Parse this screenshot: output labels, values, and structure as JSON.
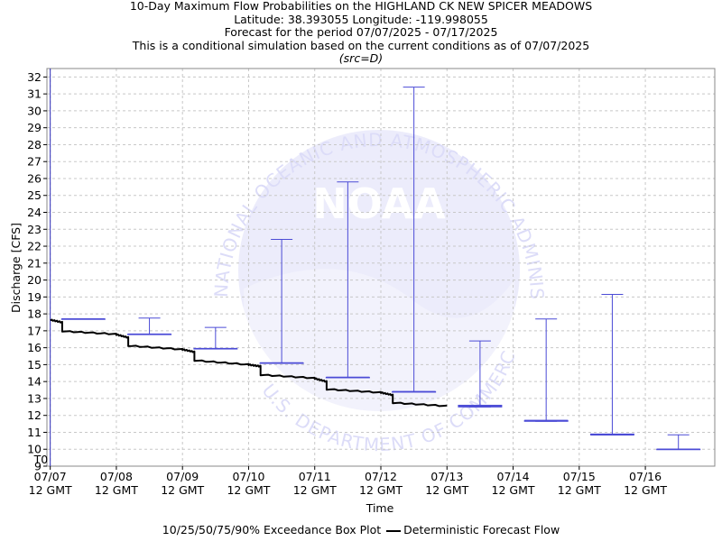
{
  "header": {
    "title": "10-Day Maximum Flow Probabilities on the HIGHLAND CK NEW SPICER MEADOWS",
    "location": "Latitude: 38.393055 Longitude: -119.998055",
    "period": "Forecast for the period 07/07/2025 - 07/17/2025",
    "note": "This is a conditional simulation based on the current conditions as of 07/07/2025",
    "source": "(src=D)"
  },
  "legend": {
    "boxplot_label": "10/25/50/75/90% Exceedance Box Plot",
    "deterministic_label": "Deterministic Forecast Flow"
  },
  "watermark": {
    "logo_text": "NOAA",
    "ring_text": "NATIONAL OCEANIC AND ATMOSPHERIC ADMINISTRATION",
    "ring_text_bottom": "U.S. DEPARTMENT OF COMMERCE"
  },
  "chart_data": {
    "type": "boxplot",
    "xlabel": "Time",
    "ylabel": "Discharge [CFS]",
    "ylim": [
      9,
      32.5
    ],
    "yticks": [
      9,
      10,
      11,
      12,
      13,
      14,
      15,
      16,
      17,
      18,
      19,
      20,
      21,
      22,
      23,
      24,
      25,
      26,
      27,
      28,
      29,
      30,
      31,
      32
    ],
    "grid": true,
    "legend_position": "bottom",
    "t0_label": "T0",
    "t0_day": 0,
    "xlim_days": [
      -0.05,
      10.05
    ],
    "x_ticks": [
      {
        "day": 0,
        "date": "07/07",
        "time": "12 GMT"
      },
      {
        "day": 1,
        "date": "07/08",
        "time": "12 GMT"
      },
      {
        "day": 2,
        "date": "07/09",
        "time": "12 GMT"
      },
      {
        "day": 3,
        "date": "07/10",
        "time": "12 GMT"
      },
      {
        "day": 4,
        "date": "07/11",
        "time": "12 GMT"
      },
      {
        "day": 5,
        "date": "07/12",
        "time": "12 GMT"
      },
      {
        "day": 6,
        "date": "07/13",
        "time": "12 GMT"
      },
      {
        "day": 7,
        "date": "07/14",
        "time": "12 GMT"
      },
      {
        "day": 8,
        "date": "07/15",
        "time": "12 GMT"
      },
      {
        "day": 9,
        "date": "07/16",
        "time": "12 GMT"
      }
    ],
    "boxes": [
      {
        "day": 0.5,
        "p90": 17.7,
        "p75": 17.7,
        "p50": 17.7,
        "p25": 17.7,
        "p10": 17.7
      },
      {
        "day": 1.5,
        "p90": 17.75,
        "p75": 16.8,
        "p50": 16.8,
        "p25": 16.8,
        "p10": 16.8
      },
      {
        "day": 2.5,
        "p90": 17.2,
        "p75": 15.95,
        "p50": 15.95,
        "p25": 15.95,
        "p10": 15.95
      },
      {
        "day": 3.5,
        "p90": 22.4,
        "p75": 15.1,
        "p50": 15.1,
        "p25": 15.1,
        "p10": 15.1
      },
      {
        "day": 4.5,
        "p90": 25.8,
        "p75": 14.25,
        "p50": 14.25,
        "p25": 14.25,
        "p10": 14.25
      },
      {
        "day": 5.5,
        "p90": 31.4,
        "p75": 13.4,
        "p50": 13.4,
        "p25": 13.4,
        "p10": 13.4
      },
      {
        "day": 6.5,
        "p90": 16.4,
        "p75": 12.6,
        "p50": 12.55,
        "p25": 12.5,
        "p10": 12.5
      },
      {
        "day": 7.5,
        "p90": 17.7,
        "p75": 11.7,
        "p50": 11.7,
        "p25": 11.65,
        "p10": 11.65
      },
      {
        "day": 8.5,
        "p90": 19.15,
        "p75": 10.9,
        "p50": 10.85,
        "p25": 10.85,
        "p10": 10.85
      },
      {
        "day": 9.5,
        "p90": 10.85,
        "p75": 10.0,
        "p50": 10.0,
        "p25": 10.0,
        "p10": 10.0
      }
    ],
    "deterministic_steps": [
      {
        "start": 0.0,
        "end": 0.18,
        "from": 17.65,
        "to": 17.5
      },
      {
        "start": 0.18,
        "end": 1.0,
        "from": 16.98,
        "to": 16.8
      },
      {
        "start": 1.0,
        "end": 1.18,
        "from": 16.78,
        "to": 16.6
      },
      {
        "start": 1.18,
        "end": 2.0,
        "from": 16.12,
        "to": 15.9
      },
      {
        "start": 2.0,
        "end": 2.18,
        "from": 15.9,
        "to": 15.75
      },
      {
        "start": 2.18,
        "end": 3.0,
        "from": 15.25,
        "to": 15.0
      },
      {
        "start": 3.0,
        "end": 3.18,
        "from": 15.0,
        "to": 14.9
      },
      {
        "start": 3.18,
        "end": 4.0,
        "from": 14.4,
        "to": 14.2
      },
      {
        "start": 4.0,
        "end": 4.18,
        "from": 14.18,
        "to": 14.0
      },
      {
        "start": 4.18,
        "end": 5.0,
        "from": 13.55,
        "to": 13.35
      },
      {
        "start": 5.0,
        "end": 5.18,
        "from": 13.35,
        "to": 13.2
      },
      {
        "start": 5.18,
        "end": 6.0,
        "from": 12.75,
        "to": 12.55
      }
    ],
    "colors": {
      "box": "#4b4bd6",
      "deterministic": "#000000",
      "t0_line": "#2b2bb8",
      "grid": "#c8c8c8",
      "watermark": "#dcdcf8"
    }
  }
}
